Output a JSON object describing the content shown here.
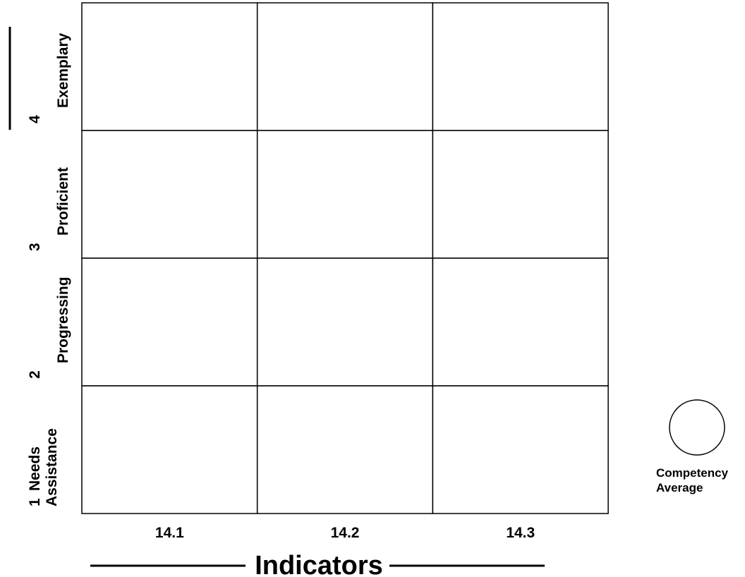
{
  "chart_data": {
    "type": "table",
    "title": "",
    "xlabel": "Indicators",
    "ylabel": "",
    "categories": [
      "14.1",
      "14.2",
      "14.3"
    ],
    "rows": [
      {
        "number": "4",
        "label_lines": [
          "Exemplary"
        ]
      },
      {
        "number": "3",
        "label_lines": [
          "Proficient"
        ]
      },
      {
        "number": "2",
        "label_lines": [
          "Progressing"
        ]
      },
      {
        "number": "1",
        "label_lines": [
          "Needs",
          "Assistance"
        ]
      }
    ],
    "cells": [
      [
        "",
        "",
        ""
      ],
      [
        "",
        "",
        ""
      ],
      [
        "",
        "",
        ""
      ],
      [
        "",
        "",
        ""
      ]
    ],
    "legend": {
      "symbol": "circle",
      "label_lines": [
        "Competency",
        "Average"
      ],
      "placement": "right"
    },
    "colors": {
      "line": "#000000",
      "background": "#ffffff"
    }
  }
}
